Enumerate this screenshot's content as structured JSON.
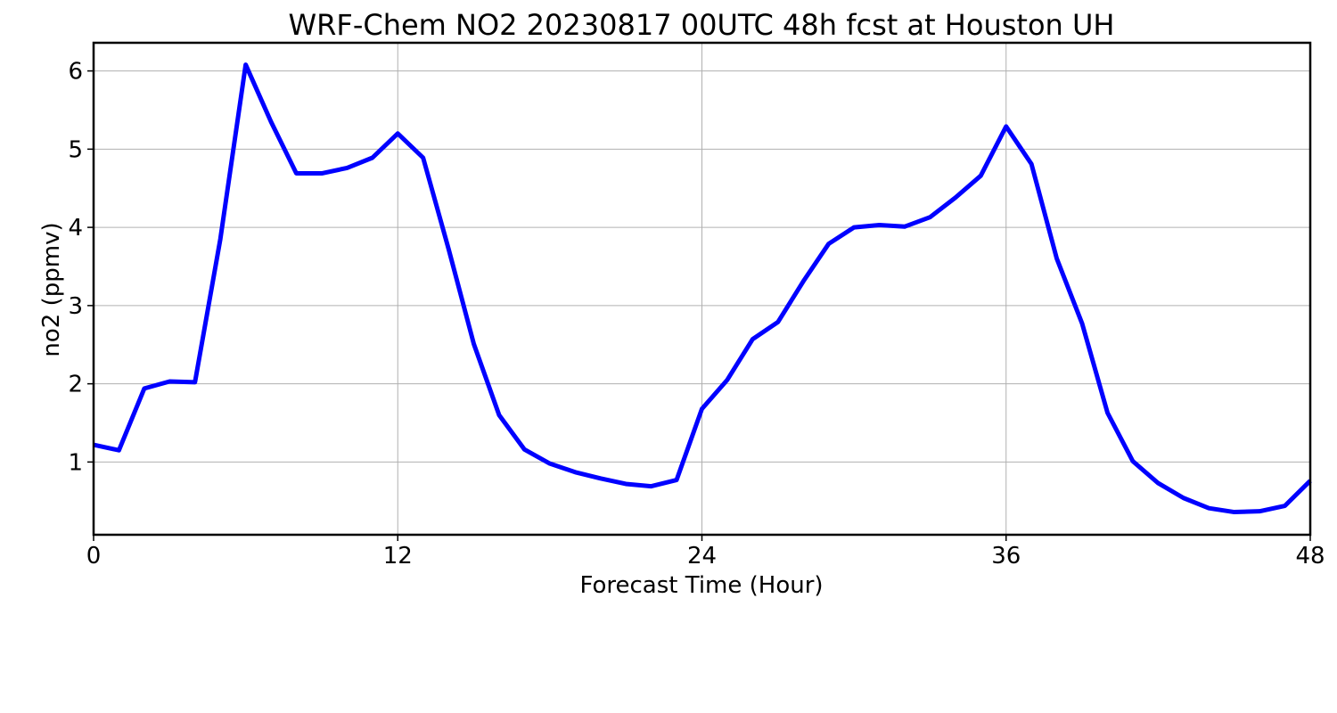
{
  "chart_data": {
    "type": "line",
    "title": "WRF-Chem NO2  20230817 00UTC 48h fcst at Houston UH",
    "xlabel": "Forecast Time (Hour)",
    "ylabel": "no2  (ppmv)",
    "xlim": [
      0,
      48
    ],
    "ylim": [
      0.07,
      6.36
    ],
    "xticks": [
      0,
      12,
      24,
      36,
      48
    ],
    "xtick_labels": [
      "0",
      "12",
      "24",
      "36",
      "48"
    ],
    "yticks": [
      1,
      2,
      3,
      4,
      5,
      6
    ],
    "ytick_labels": [
      "1",
      "2",
      "3",
      "4",
      "5",
      "6"
    ],
    "grid": true,
    "line_color": "#0000ff",
    "x": [
      0,
      1,
      2,
      3,
      4,
      5,
      6,
      7,
      8,
      9,
      10,
      11,
      12,
      13,
      14,
      15,
      16,
      17,
      18,
      19,
      20,
      21,
      22,
      23,
      24,
      25,
      26,
      27,
      28,
      29,
      30,
      31,
      32,
      33,
      34,
      35,
      36,
      37,
      38,
      39,
      40,
      41,
      42,
      43,
      44,
      45,
      46,
      47,
      48
    ],
    "series": [
      {
        "values": [
          1.22,
          1.15,
          1.94,
          2.03,
          2.02,
          3.85,
          6.08,
          5.35,
          4.69,
          4.69,
          4.76,
          4.89,
          5.2,
          4.89,
          3.73,
          2.51,
          1.6,
          1.16,
          0.98,
          0.87,
          0.79,
          0.72,
          0.69,
          0.77,
          1.68,
          2.05,
          2.57,
          2.79,
          3.31,
          3.79,
          4.0,
          4.03,
          4.01,
          4.13,
          4.38,
          4.66,
          5.29,
          4.81,
          3.6,
          2.77,
          1.63,
          1.01,
          0.73,
          0.54,
          0.41,
          0.36,
          0.37,
          0.44,
          0.76
        ]
      }
    ]
  }
}
